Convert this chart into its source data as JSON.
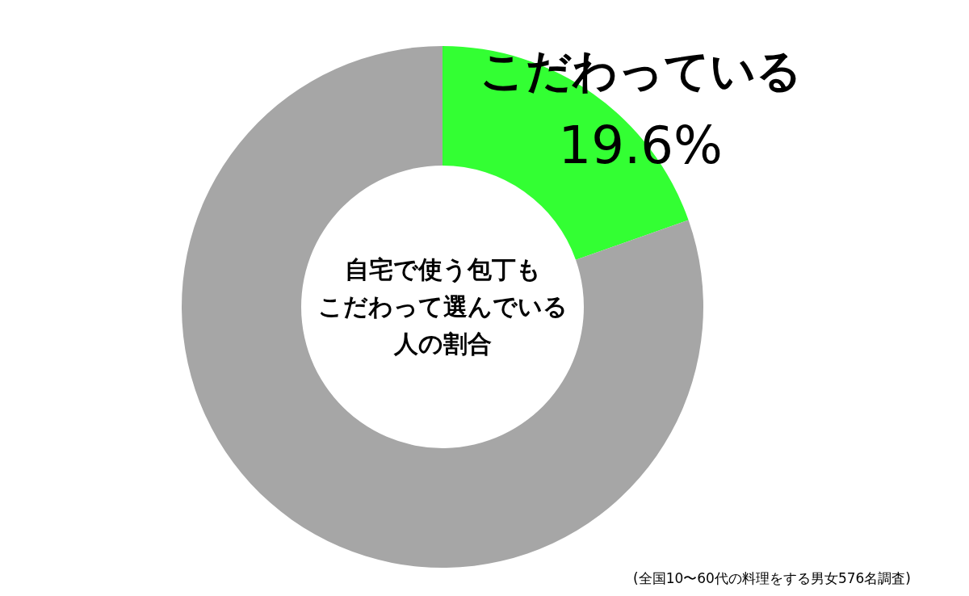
{
  "chart_data": {
    "type": "donut",
    "title": "自宅で使う包丁もこだわって選んでいる人の割合",
    "categories": [
      "こだわっている",
      null
    ],
    "values": [
      19.6,
      80.4
    ],
    "colors": [
      "#33ff33",
      "#a6a6a6"
    ],
    "value_labels": [
      "19.6%",
      null
    ],
    "legend": false,
    "annotations": [
      "(全国10〜60代の料理をする男女576名調査)"
    ]
  }
}
